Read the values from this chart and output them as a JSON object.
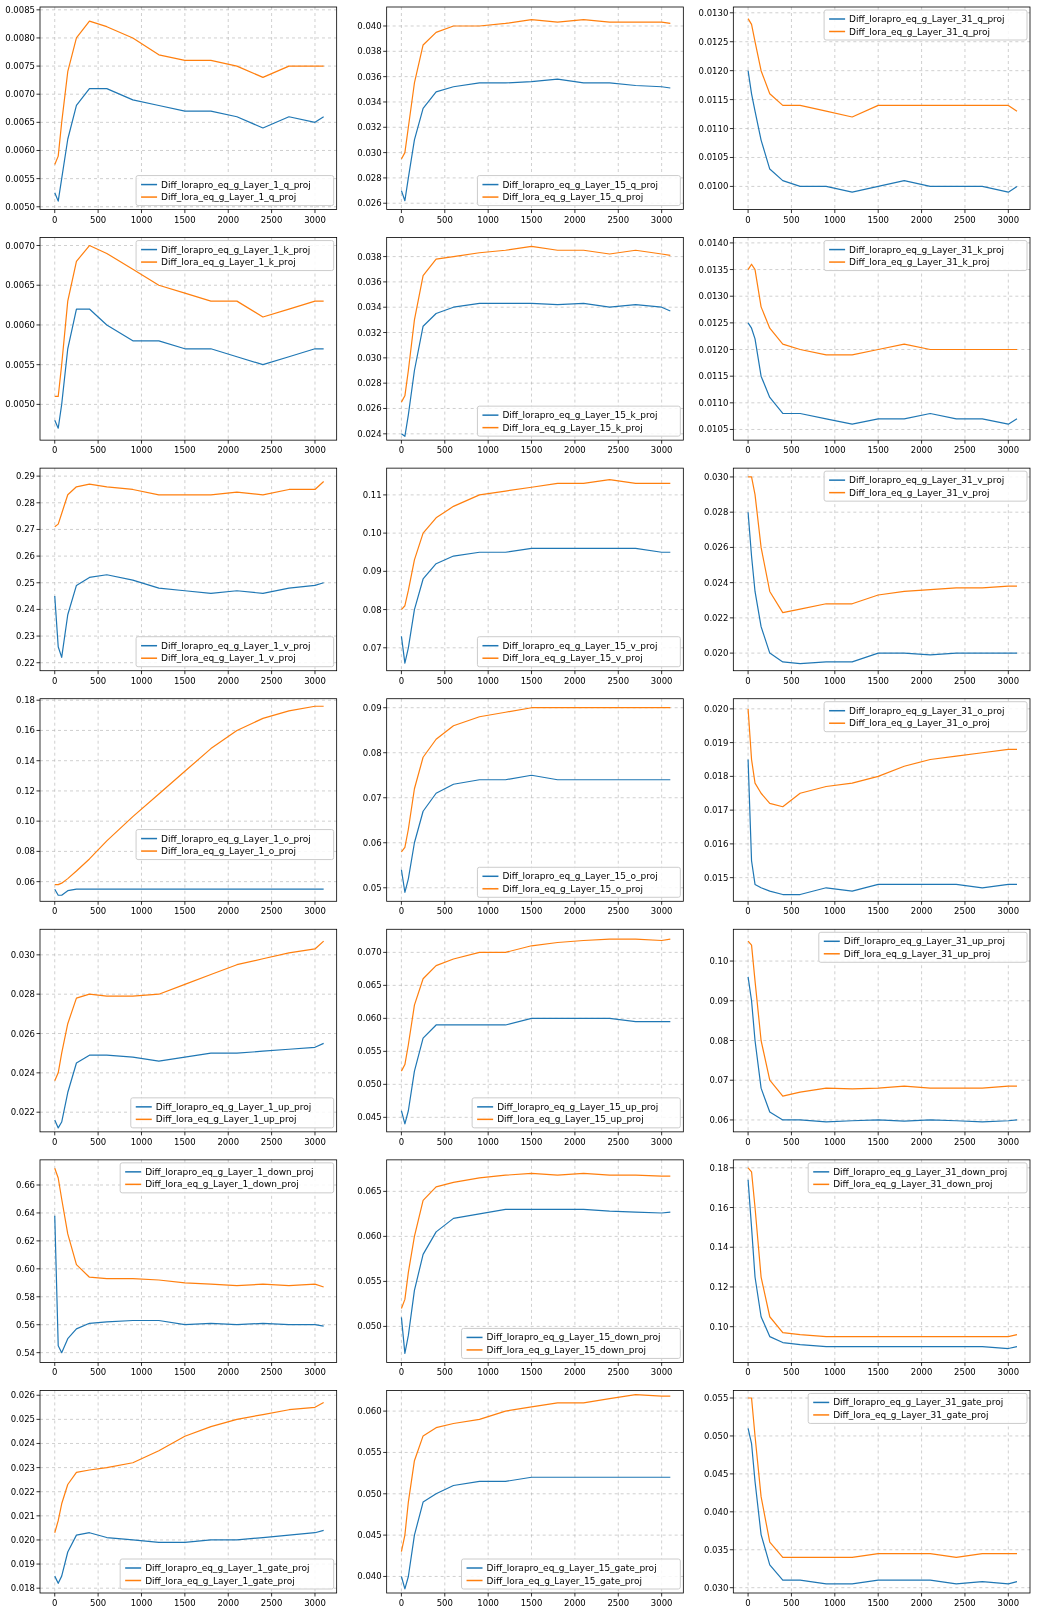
{
  "chart_data": [
    {
      "type": "line",
      "x": [
        0,
        40,
        80,
        150,
        250,
        400,
        600,
        900,
        1200,
        1500,
        1800,
        2100,
        2400,
        2700,
        3000,
        3100
      ],
      "xlim": [
        -170,
        3250
      ],
      "xticks": [
        0,
        500,
        1000,
        1500,
        2000,
        2500,
        3000
      ],
      "ylim": [
        0.00495,
        0.00855
      ],
      "yticks": [
        {
          "value": 0.005,
          "label": "0.0050"
        },
        0.0055,
        {
          "value": 0.006,
          "label": "0.0060"
        },
        0.0065,
        {
          "value": 0.007,
          "label": "0.0070"
        },
        0.0075,
        {
          "value": 0.008,
          "label": "0.0080"
        },
        0.0085
      ],
      "grid": true,
      "legend": "bottom right",
      "series": [
        {
          "name": "Diff_lorapro_eq_g_Layer_1_q_proj",
          "color": "#1f77b4",
          "values": [
            0.00525,
            0.0051,
            0.0055,
            0.0062,
            0.0068,
            0.0071,
            0.0071,
            0.0069,
            0.0068,
            0.0067,
            0.0067,
            0.0066,
            0.0064,
            0.0066,
            0.0065,
            0.0066
          ]
        },
        {
          "name": "Diff_lora_eq_g_Layer_1_q_proj",
          "color": "#ff7f0e",
          "values": [
            0.00575,
            0.0059,
            0.0065,
            0.0074,
            0.008,
            0.0083,
            0.0082,
            0.008,
            0.0077,
            0.0076,
            0.0076,
            0.0075,
            0.0073,
            0.0075,
            0.0075,
            0.0075
          ]
        }
      ]
    },
    {
      "type": "line",
      "x": [
        0,
        40,
        80,
        150,
        250,
        400,
        600,
        900,
        1200,
        1500,
        1800,
        2100,
        2400,
        2700,
        3000,
        3100
      ],
      "xlim": [
        -170,
        3250
      ],
      "xticks": [
        0,
        500,
        1000,
        1500,
        2000,
        2500,
        3000
      ],
      "ylim": [
        0.0255,
        0.0415
      ],
      "yticks": [
        0.026,
        0.028,
        {
          "value": 0.03,
          "label": "0.030"
        },
        0.032,
        0.034,
        0.036,
        0.038,
        {
          "value": 0.04,
          "label": "0.040"
        }
      ],
      "grid": true,
      "legend": "bottom right",
      "series": [
        {
          "name": "Diff_lorapro_eq_g_Layer_15_q_proj",
          "color": "#1f77b4",
          "values": [
            0.027,
            0.0262,
            0.028,
            0.031,
            0.0335,
            0.0348,
            0.0352,
            0.0355,
            0.0355,
            0.0356,
            0.0358,
            0.0355,
            0.0355,
            0.0353,
            0.0352,
            0.0351
          ]
        },
        {
          "name": "Diff_lora_eq_g_Layer_15_q_proj",
          "color": "#ff7f0e",
          "values": [
            0.0295,
            0.03,
            0.032,
            0.0355,
            0.0385,
            0.0395,
            0.04,
            0.04,
            0.0402,
            0.0405,
            0.0403,
            0.0405,
            0.0403,
            0.0403,
            0.0403,
            0.0402
          ]
        }
      ]
    },
    {
      "type": "line",
      "x": [
        0,
        40,
        80,
        150,
        250,
        400,
        600,
        900,
        1200,
        1500,
        1800,
        2100,
        2400,
        2700,
        3000,
        3100
      ],
      "xlim": [
        -170,
        3250
      ],
      "xticks": [
        0,
        500,
        1000,
        1500,
        2000,
        2500,
        3000
      ],
      "ylim": [
        0.0096,
        0.0131
      ],
      "yticks": [
        {
          "value": 0.01,
          "label": "0.0100"
        },
        0.0105,
        {
          "value": 0.011,
          "label": "0.0110"
        },
        0.0115,
        {
          "value": 0.012,
          "label": "0.0120"
        },
        0.0125,
        {
          "value": 0.013,
          "label": "0.0130"
        }
      ],
      "grid": true,
      "legend": "top right",
      "series": [
        {
          "name": "Diff_lorapro_eq_g_Layer_31_q_proj",
          "color": "#1f77b4",
          "values": [
            0.012,
            0.0116,
            0.0113,
            0.0108,
            0.0103,
            0.0101,
            0.01,
            0.01,
            0.0099,
            0.01,
            0.0101,
            0.01,
            0.01,
            0.01,
            0.0099,
            0.01
          ]
        },
        {
          "name": "Diff_lora_eq_g_Layer_31_q_proj",
          "color": "#ff7f0e",
          "values": [
            0.0129,
            0.0128,
            0.0125,
            0.012,
            0.0116,
            0.0114,
            0.0114,
            0.0113,
            0.0112,
            0.0114,
            0.0114,
            0.0114,
            0.0114,
            0.0114,
            0.0114,
            0.0113
          ]
        }
      ]
    },
    {
      "type": "line",
      "x": [
        0,
        40,
        80,
        150,
        250,
        400,
        600,
        900,
        1200,
        1500,
        1800,
        2100,
        2400,
        2700,
        3000,
        3100
      ],
      "xlim": [
        -170,
        3250
      ],
      "xticks": [
        0,
        500,
        1000,
        1500,
        2000,
        2500,
        3000
      ],
      "ylim": [
        0.00455,
        0.0071
      ],
      "yticks": [
        {
          "value": 0.005,
          "label": "0.0050"
        },
        0.0055,
        {
          "value": 0.006,
          "label": "0.0060"
        },
        0.0065,
        {
          "value": 0.007,
          "label": "0.0070"
        }
      ],
      "grid": true,
      "legend": "top right",
      "series": [
        {
          "name": "Diff_lorapro_eq_g_Layer_1_k_proj",
          "color": "#1f77b4",
          "values": [
            0.0048,
            0.0047,
            0.005,
            0.0057,
            0.0062,
            0.0062,
            0.006,
            0.0058,
            0.0058,
            0.0057,
            0.0057,
            0.0056,
            0.0055,
            0.0056,
            0.0057,
            0.0057
          ]
        },
        {
          "name": "Diff_lora_eq_g_Layer_1_k_proj",
          "color": "#ff7f0e",
          "values": [
            0.0051,
            0.0051,
            0.0055,
            0.0063,
            0.0068,
            0.007,
            0.0069,
            0.0067,
            0.0065,
            0.0064,
            0.0063,
            0.0063,
            0.0061,
            0.0062,
            0.0063,
            0.0063
          ]
        }
      ]
    },
    {
      "type": "line",
      "x": [
        0,
        40,
        80,
        150,
        250,
        400,
        600,
        900,
        1200,
        1500,
        1800,
        2100,
        2400,
        2700,
        3000,
        3100
      ],
      "xlim": [
        -170,
        3250
      ],
      "xticks": [
        0,
        500,
        1000,
        1500,
        2000,
        2500,
        3000
      ],
      "ylim": [
        0.0235,
        0.0395
      ],
      "yticks": [
        0.024,
        0.026,
        0.028,
        {
          "value": 0.03,
          "label": "0.030"
        },
        0.032,
        0.034,
        0.036,
        0.038
      ],
      "grid": true,
      "legend": "bottom right",
      "series": [
        {
          "name": "Diff_lorapro_eq_g_Layer_15_k_proj",
          "color": "#1f77b4",
          "values": [
            0.024,
            0.0238,
            0.0255,
            0.029,
            0.0325,
            0.0335,
            0.034,
            0.0343,
            0.0343,
            0.0343,
            0.0342,
            0.0343,
            0.034,
            0.0342,
            0.034,
            0.0337
          ]
        },
        {
          "name": "Diff_lora_eq_g_Layer_15_k_proj",
          "color": "#ff7f0e",
          "values": [
            0.0265,
            0.027,
            0.029,
            0.033,
            0.0365,
            0.0378,
            0.038,
            0.0383,
            0.0385,
            0.0388,
            0.0385,
            0.0385,
            0.0382,
            0.0385,
            0.0382,
            0.0381
          ]
        }
      ]
    },
    {
      "type": "line",
      "x": [
        0,
        40,
        80,
        150,
        250,
        400,
        600,
        900,
        1200,
        1500,
        1800,
        2100,
        2400,
        2700,
        3000,
        3100
      ],
      "xlim": [
        -170,
        3250
      ],
      "xticks": [
        0,
        500,
        1000,
        1500,
        2000,
        2500,
        3000
      ],
      "ylim": [
        0.0103,
        0.0141
      ],
      "yticks": [
        0.0105,
        {
          "value": 0.011,
          "label": "0.0110"
        },
        0.0115,
        {
          "value": 0.012,
          "label": "0.0120"
        },
        0.0125,
        {
          "value": 0.013,
          "label": "0.0130"
        },
        0.0135,
        {
          "value": 0.014,
          "label": "0.0140"
        }
      ],
      "grid": true,
      "legend": "top right",
      "series": [
        {
          "name": "Diff_lorapro_eq_g_Layer_31_k_proj",
          "color": "#1f77b4",
          "values": [
            0.0125,
            0.0124,
            0.0122,
            0.0115,
            0.0111,
            0.0108,
            0.0108,
            0.0107,
            0.0106,
            0.0107,
            0.0107,
            0.0108,
            0.0107,
            0.0107,
            0.0106,
            0.0107
          ]
        },
        {
          "name": "Diff_lora_eq_g_Layer_31_k_proj",
          "color": "#ff7f0e",
          "values": [
            0.0135,
            0.0136,
            0.0135,
            0.0128,
            0.0124,
            0.0121,
            0.012,
            0.0119,
            0.0119,
            0.012,
            0.0121,
            0.012,
            0.012,
            0.012,
            0.012,
            0.012
          ]
        }
      ]
    },
    {
      "type": "line",
      "x": [
        0,
        40,
        80,
        150,
        250,
        400,
        600,
        900,
        1200,
        1500,
        1800,
        2100,
        2400,
        2700,
        3000,
        3100
      ],
      "xlim": [
        -170,
        3250
      ],
      "xticks": [
        0,
        500,
        1000,
        1500,
        2000,
        2500,
        3000
      ],
      "ylim": [
        0.217,
        0.293
      ],
      "yticks": [
        0.22,
        0.23,
        0.24,
        0.25,
        0.26,
        0.27,
        0.28,
        0.29
      ],
      "grid": true,
      "legend": "bottom right",
      "series": [
        {
          "name": "Diff_lorapro_eq_g_Layer_1_v_proj",
          "color": "#1f77b4",
          "values": [
            0.245,
            0.226,
            0.222,
            0.238,
            0.249,
            0.252,
            0.253,
            0.251,
            0.248,
            0.247,
            0.246,
            0.247,
            0.246,
            0.248,
            0.249,
            0.25
          ]
        },
        {
          "name": "Diff_lora_eq_g_Layer_1_v_proj",
          "color": "#ff7f0e",
          "values": [
            0.271,
            0.272,
            0.276,
            0.283,
            0.286,
            0.287,
            0.286,
            0.285,
            0.283,
            0.283,
            0.283,
            0.284,
            0.283,
            0.285,
            0.285,
            0.288
          ]
        }
      ]
    },
    {
      "type": "line",
      "x": [
        0,
        40,
        80,
        150,
        250,
        400,
        600,
        900,
        1200,
        1500,
        1800,
        2100,
        2400,
        2700,
        3000,
        3100
      ],
      "xlim": [
        -170,
        3250
      ],
      "xticks": [
        0,
        500,
        1000,
        1500,
        2000,
        2500,
        3000
      ],
      "ylim": [
        0.064,
        0.117
      ],
      "yticks": [
        0.07,
        0.08,
        0.09,
        {
          "value": 0.1,
          "label": "0.10"
        },
        0.11
      ],
      "grid": true,
      "legend": "bottom right",
      "series": [
        {
          "name": "Diff_lorapro_eq_g_Layer_15_v_proj",
          "color": "#1f77b4",
          "values": [
            0.073,
            0.066,
            0.07,
            0.08,
            0.088,
            0.092,
            0.094,
            0.095,
            0.095,
            0.096,
            0.096,
            0.096,
            0.096,
            0.096,
            0.095,
            0.095
          ]
        },
        {
          "name": "Diff_lora_eq_g_Layer_15_v_proj",
          "color": "#ff7f0e",
          "values": [
            0.08,
            0.081,
            0.085,
            0.093,
            0.1,
            0.104,
            0.107,
            0.11,
            0.111,
            0.112,
            0.113,
            0.113,
            0.114,
            0.113,
            0.113,
            0.113
          ]
        }
      ]
    },
    {
      "type": "line",
      "x": [
        0,
        40,
        80,
        150,
        250,
        400,
        600,
        900,
        1200,
        1500,
        1800,
        2100,
        2400,
        2700,
        3000,
        3100
      ],
      "xlim": [
        -170,
        3250
      ],
      "xticks": [
        0,
        500,
        1000,
        1500,
        2000,
        2500,
        3000
      ],
      "ylim": [
        0.019,
        0.0305
      ],
      "yticks": [
        {
          "value": 0.02,
          "label": "0.020"
        },
        0.022,
        0.024,
        0.026,
        0.028,
        {
          "value": 0.03,
          "label": "0.030"
        }
      ],
      "grid": true,
      "legend": "top right",
      "series": [
        {
          "name": "Diff_lorapro_eq_g_Layer_31_v_proj",
          "color": "#1f77b4",
          "values": [
            0.028,
            0.0255,
            0.0235,
            0.0215,
            0.02,
            0.0195,
            0.0194,
            0.0195,
            0.0195,
            0.02,
            0.02,
            0.0199,
            0.02,
            0.02,
            0.02,
            0.02
          ]
        },
        {
          "name": "Diff_lora_eq_g_Layer_31_v_proj",
          "color": "#ff7f0e",
          "values": [
            0.03,
            0.03,
            0.029,
            0.026,
            0.0235,
            0.0223,
            0.0225,
            0.0228,
            0.0228,
            0.0233,
            0.0235,
            0.0236,
            0.0237,
            0.0237,
            0.0238,
            0.0238
          ]
        }
      ]
    },
    {
      "type": "line",
      "x": [
        0,
        40,
        80,
        150,
        250,
        400,
        600,
        900,
        1200,
        1500,
        1800,
        2100,
        2400,
        2700,
        3000,
        3100
      ],
      "xlim": [
        -170,
        3250
      ],
      "xticks": [
        0,
        500,
        1000,
        1500,
        2000,
        2500,
        3000
      ],
      "ylim": [
        0.047,
        0.181
      ],
      "yticks": [
        0.06,
        0.08,
        {
          "value": 0.1,
          "label": "0.10"
        },
        0.12,
        0.14,
        0.16,
        0.18
      ],
      "grid": true,
      "legend": "right",
      "series": [
        {
          "name": "Diff_lorapro_eq_g_Layer_1_o_proj",
          "color": "#1f77b4",
          "values": [
            0.055,
            0.051,
            0.051,
            0.054,
            0.055,
            0.055,
            0.055,
            0.055,
            0.055,
            0.055,
            0.055,
            0.055,
            0.055,
            0.055,
            0.055,
            0.055
          ]
        },
        {
          "name": "Diff_lora_eq_g_Layer_1_o_proj",
          "color": "#ff7f0e",
          "values": [
            0.058,
            0.058,
            0.059,
            0.062,
            0.067,
            0.075,
            0.087,
            0.103,
            0.118,
            0.133,
            0.148,
            0.16,
            0.168,
            0.173,
            0.176,
            0.176
          ]
        }
      ]
    },
    {
      "type": "line",
      "x": [
        0,
        40,
        80,
        150,
        250,
        400,
        600,
        900,
        1200,
        1500,
        1800,
        2100,
        2400,
        2700,
        3000,
        3100
      ],
      "xlim": [
        -170,
        3250
      ],
      "xticks": [
        0,
        500,
        1000,
        1500,
        2000,
        2500,
        3000
      ],
      "ylim": [
        0.047,
        0.092
      ],
      "yticks": [
        0.05,
        0.06,
        0.07,
        0.08,
        0.09
      ],
      "grid": true,
      "legend": "bottom right",
      "series": [
        {
          "name": "Diff_lorapro_eq_g_Layer_15_o_proj",
          "color": "#1f77b4",
          "values": [
            0.054,
            0.049,
            0.052,
            0.06,
            0.067,
            0.071,
            0.073,
            0.074,
            0.074,
            0.075,
            0.074,
            0.074,
            0.074,
            0.074,
            0.074,
            0.074
          ]
        },
        {
          "name": "Diff_lora_eq_g_Layer_15_o_proj",
          "color": "#ff7f0e",
          "values": [
            0.058,
            0.059,
            0.063,
            0.072,
            0.079,
            0.083,
            0.086,
            0.088,
            0.089,
            0.09,
            0.09,
            0.09,
            0.09,
            0.09,
            0.09,
            0.09
          ]
        }
      ]
    },
    {
      "type": "line",
      "x": [
        0,
        40,
        80,
        150,
        250,
        400,
        600,
        900,
        1200,
        1500,
        1800,
        2100,
        2400,
        2700,
        3000,
        3100
      ],
      "xlim": [
        -170,
        3250
      ],
      "xticks": [
        0,
        500,
        1000,
        1500,
        2000,
        2500,
        3000
      ],
      "ylim": [
        0.0143,
        0.0203
      ],
      "yticks": [
        0.015,
        0.016,
        0.017,
        0.018,
        0.019,
        {
          "value": 0.02,
          "label": "0.020"
        }
      ],
      "grid": true,
      "legend": "top right",
      "series": [
        {
          "name": "Diff_lorapro_eq_g_Layer_31_o_proj",
          "color": "#1f77b4",
          "values": [
            0.0185,
            0.0155,
            0.0148,
            0.0147,
            0.0146,
            0.0145,
            0.0145,
            0.0147,
            0.0146,
            0.0148,
            0.0148,
            0.0148,
            0.0148,
            0.0147,
            0.0148,
            0.0148
          ]
        },
        {
          "name": "Diff_lora_eq_g_Layer_31_o_proj",
          "color": "#ff7f0e",
          "values": [
            0.02,
            0.0185,
            0.0178,
            0.0175,
            0.0172,
            0.0171,
            0.0175,
            0.0177,
            0.0178,
            0.018,
            0.0183,
            0.0185,
            0.0186,
            0.0187,
            0.0188,
            0.0188
          ]
        }
      ]
    },
    {
      "type": "line",
      "x": [
        0,
        40,
        80,
        150,
        250,
        400,
        600,
        900,
        1200,
        1500,
        1800,
        2100,
        2400,
        2700,
        3000,
        3100
      ],
      "xlim": [
        -170,
        3250
      ],
      "xticks": [
        0,
        500,
        1000,
        1500,
        2000,
        2500,
        3000
      ],
      "ylim": [
        0.021,
        0.0313
      ],
      "yticks": [
        0.022,
        0.024,
        0.026,
        0.028,
        {
          "value": 0.03,
          "label": "0.030"
        }
      ],
      "grid": true,
      "legend": "bottom right",
      "series": [
        {
          "name": "Diff_lorapro_eq_g_Layer_1_up_proj",
          "color": "#1f77b4",
          "values": [
            0.0216,
            0.0212,
            0.0215,
            0.023,
            0.0245,
            0.0249,
            0.0249,
            0.0248,
            0.0246,
            0.0248,
            0.025,
            0.025,
            0.0251,
            0.0252,
            0.0253,
            0.0255
          ]
        },
        {
          "name": "Diff_lora_eq_g_Layer_1_up_proj",
          "color": "#ff7f0e",
          "values": [
            0.0236,
            0.024,
            0.025,
            0.0265,
            0.0278,
            0.028,
            0.0279,
            0.0279,
            0.028,
            0.0285,
            0.029,
            0.0295,
            0.0298,
            0.0301,
            0.0303,
            0.0307
          ]
        }
      ]
    },
    {
      "type": "line",
      "x": [
        0,
        40,
        80,
        150,
        250,
        400,
        600,
        900,
        1200,
        1500,
        1800,
        2100,
        2400,
        2700,
        3000,
        3100
      ],
      "xlim": [
        -170,
        3250
      ],
      "xticks": [
        0,
        500,
        1000,
        1500,
        2000,
        2500,
        3000
      ],
      "ylim": [
        0.0428,
        0.0735
      ],
      "yticks": [
        0.045,
        {
          "value": 0.05,
          "label": "0.050"
        },
        0.055,
        {
          "value": 0.06,
          "label": "0.060"
        },
        0.065,
        {
          "value": 0.07,
          "label": "0.070"
        }
      ],
      "grid": true,
      "legend": "bottom right",
      "series": [
        {
          "name": "Diff_lorapro_eq_g_Layer_15_up_proj",
          "color": "#1f77b4",
          "values": [
            0.046,
            0.044,
            0.046,
            0.052,
            0.057,
            0.059,
            0.059,
            0.059,
            0.059,
            0.06,
            0.06,
            0.06,
            0.06,
            0.0595,
            0.0595,
            0.0595
          ]
        },
        {
          "name": "Diff_lora_eq_g_Layer_15_up_proj",
          "color": "#ff7f0e",
          "values": [
            0.052,
            0.053,
            0.056,
            0.062,
            0.066,
            0.068,
            0.069,
            0.07,
            0.07,
            0.071,
            0.0715,
            0.0718,
            0.072,
            0.072,
            0.0718,
            0.072
          ]
        }
      ]
    },
    {
      "type": "line",
      "x": [
        0,
        40,
        80,
        150,
        250,
        400,
        600,
        900,
        1200,
        1500,
        1800,
        2100,
        2400,
        2700,
        3000,
        3100
      ],
      "xlim": [
        -170,
        3250
      ],
      "xticks": [
        0,
        500,
        1000,
        1500,
        2000,
        2500,
        3000
      ],
      "ylim": [
        0.057,
        0.108
      ],
      "yticks": [
        0.06,
        0.07,
        0.08,
        0.09,
        {
          "value": 0.1,
          "label": "0.10"
        }
      ],
      "grid": true,
      "legend": "top right",
      "series": [
        {
          "name": "Diff_lorapro_eq_g_Layer_31_up_proj",
          "color": "#1f77b4",
          "values": [
            0.096,
            0.09,
            0.08,
            0.068,
            0.062,
            0.06,
            0.06,
            0.0595,
            0.0598,
            0.06,
            0.0597,
            0.06,
            0.0598,
            0.0595,
            0.0598,
            0.06
          ]
        },
        {
          "name": "Diff_lora_eq_g_Layer_31_up_proj",
          "color": "#ff7f0e",
          "values": [
            0.105,
            0.104,
            0.095,
            0.08,
            0.07,
            0.066,
            0.067,
            0.068,
            0.0678,
            0.068,
            0.0685,
            0.068,
            0.068,
            0.068,
            0.0685,
            0.0685
          ]
        }
      ]
    },
    {
      "type": "line",
      "x": [
        0,
        40,
        80,
        150,
        250,
        400,
        600,
        900,
        1200,
        1500,
        1800,
        2100,
        2400,
        2700,
        3000,
        3100
      ],
      "xlim": [
        -170,
        3250
      ],
      "xticks": [
        0,
        500,
        1000,
        1500,
        2000,
        2500,
        3000
      ],
      "ylim": [
        0.533,
        0.678
      ],
      "yticks": [
        0.54,
        0.56,
        0.58,
        {
          "value": 0.6,
          "label": "0.60"
        },
        0.62,
        0.64,
        0.66
      ],
      "grid": true,
      "legend": "top right",
      "series": [
        {
          "name": "Diff_lorapro_eq_g_Layer_1_down_proj",
          "color": "#1f77b4",
          "values": [
            0.638,
            0.545,
            0.54,
            0.55,
            0.557,
            0.561,
            0.562,
            0.563,
            0.563,
            0.56,
            0.561,
            0.56,
            0.561,
            0.56,
            0.56,
            0.559
          ]
        },
        {
          "name": "Diff_lora_eq_g_Layer_1_down_proj",
          "color": "#ff7f0e",
          "values": [
            0.672,
            0.665,
            0.65,
            0.625,
            0.603,
            0.594,
            0.593,
            0.593,
            0.592,
            0.59,
            0.589,
            0.588,
            0.589,
            0.588,
            0.589,
            0.587
          ]
        }
      ]
    },
    {
      "type": "line",
      "x": [
        0,
        40,
        80,
        150,
        250,
        400,
        600,
        900,
        1200,
        1500,
        1800,
        2100,
        2400,
        2700,
        3000,
        3100
      ],
      "xlim": [
        -170,
        3250
      ],
      "xticks": [
        0,
        500,
        1000,
        1500,
        2000,
        2500,
        3000
      ],
      "ylim": [
        0.046,
        0.0685
      ],
      "yticks": [
        {
          "value": 0.05,
          "label": "0.050"
        },
        0.055,
        {
          "value": 0.06,
          "label": "0.060"
        },
        0.065
      ],
      "grid": true,
      "legend": "bottom right",
      "series": [
        {
          "name": "Diff_lorapro_eq_g_Layer_15_down_proj",
          "color": "#1f77b4",
          "values": [
            0.051,
            0.047,
            0.049,
            0.054,
            0.058,
            0.0605,
            0.062,
            0.0625,
            0.063,
            0.063,
            0.063,
            0.063,
            0.0628,
            0.0627,
            0.0626,
            0.0627
          ]
        },
        {
          "name": "Diff_lora_eq_g_Layer_15_down_proj",
          "color": "#ff7f0e",
          "values": [
            0.052,
            0.053,
            0.056,
            0.06,
            0.064,
            0.0655,
            0.066,
            0.0665,
            0.0668,
            0.067,
            0.0668,
            0.067,
            0.0668,
            0.0668,
            0.0667,
            0.0667
          ]
        }
      ]
    },
    {
      "type": "line",
      "x": [
        0,
        40,
        80,
        150,
        250,
        400,
        600,
        900,
        1200,
        1500,
        1800,
        2100,
        2400,
        2700,
        3000,
        3100
      ],
      "xlim": [
        -170,
        3250
      ],
      "xticks": [
        0,
        500,
        1000,
        1500,
        2000,
        2500,
        3000
      ],
      "ylim": [
        0.082,
        0.184
      ],
      "yticks": [
        {
          "value": 0.1,
          "label": "0.10"
        },
        0.12,
        0.14,
        0.16,
        0.18
      ],
      "grid": true,
      "legend": "top right",
      "series": [
        {
          "name": "Diff_lorapro_eq_g_Layer_31_down_proj",
          "color": "#1f77b4",
          "values": [
            0.174,
            0.15,
            0.125,
            0.105,
            0.095,
            0.092,
            0.091,
            0.09,
            0.09,
            0.09,
            0.09,
            0.09,
            0.09,
            0.09,
            0.089,
            0.09
          ]
        },
        {
          "name": "Diff_lora_eq_g_Layer_31_down_proj",
          "color": "#ff7f0e",
          "values": [
            0.18,
            0.178,
            0.16,
            0.125,
            0.105,
            0.097,
            0.096,
            0.095,
            0.095,
            0.095,
            0.095,
            0.095,
            0.095,
            0.095,
            0.095,
            0.096
          ]
        }
      ]
    },
    {
      "type": "line",
      "x": [
        0,
        40,
        80,
        150,
        250,
        400,
        600,
        900,
        1200,
        1500,
        1800,
        2100,
        2400,
        2700,
        3000,
        3100
      ],
      "xlim": [
        -170,
        3250
      ],
      "xticks": [
        0,
        500,
        1000,
        1500,
        2000,
        2500,
        3000
      ],
      "ylim": [
        0.0178,
        0.0262
      ],
      "yticks": [
        0.018,
        0.019,
        {
          "value": 0.02,
          "label": "0.020"
        },
        0.021,
        0.022,
        0.023,
        0.024,
        0.025,
        0.026
      ],
      "grid": true,
      "legend": "bottom right",
      "series": [
        {
          "name": "Diff_lorapro_eq_g_Layer_1_gate_proj",
          "color": "#1f77b4",
          "values": [
            0.0185,
            0.0182,
            0.0185,
            0.0195,
            0.0202,
            0.0203,
            0.0201,
            0.02,
            0.0199,
            0.0199,
            0.02,
            0.02,
            0.0201,
            0.0202,
            0.0203,
            0.0204
          ]
        },
        {
          "name": "Diff_lora_eq_g_Layer_1_gate_proj",
          "color": "#ff7f0e",
          "values": [
            0.0203,
            0.0208,
            0.0215,
            0.0223,
            0.0228,
            0.0229,
            0.023,
            0.0232,
            0.0237,
            0.0243,
            0.0247,
            0.025,
            0.0252,
            0.0254,
            0.0255,
            0.0257
          ]
        }
      ]
    },
    {
      "type": "line",
      "x": [
        0,
        40,
        80,
        150,
        250,
        400,
        600,
        900,
        1200,
        1500,
        1800,
        2100,
        2400,
        2700,
        3000,
        3100
      ],
      "xlim": [
        -170,
        3250
      ],
      "xticks": [
        0,
        500,
        1000,
        1500,
        2000,
        2500,
        3000
      ],
      "ylim": [
        0.038,
        0.0625
      ],
      "yticks": [
        {
          "value": 0.04,
          "label": "0.040"
        },
        0.045,
        {
          "value": 0.05,
          "label": "0.050"
        },
        0.055,
        {
          "value": 0.06,
          "label": "0.060"
        }
      ],
      "grid": true,
      "legend": "bottom right",
      "series": [
        {
          "name": "Diff_lorapro_eq_g_Layer_15_gate_proj",
          "color": "#1f77b4",
          "values": [
            0.04,
            0.0385,
            0.04,
            0.045,
            0.049,
            0.05,
            0.051,
            0.0515,
            0.0515,
            0.052,
            0.052,
            0.052,
            0.052,
            0.052,
            0.052,
            0.052
          ]
        },
        {
          "name": "Diff_lora_eq_g_Layer_15_gate_proj",
          "color": "#ff7f0e",
          "values": [
            0.043,
            0.045,
            0.049,
            0.054,
            0.057,
            0.058,
            0.0585,
            0.059,
            0.06,
            0.0605,
            0.061,
            0.061,
            0.0615,
            0.062,
            0.0618,
            0.0618
          ]
        }
      ]
    },
    {
      "type": "line",
      "x": [
        0,
        40,
        80,
        150,
        250,
        400,
        600,
        900,
        1200,
        1500,
        1800,
        2100,
        2400,
        2700,
        3000,
        3100
      ],
      "xlim": [
        -170,
        3250
      ],
      "xticks": [
        0,
        500,
        1000,
        1500,
        2000,
        2500,
        3000
      ],
      "ylim": [
        0.0293,
        0.056
      ],
      "yticks": [
        {
          "value": 0.03,
          "label": "0.030"
        },
        0.035,
        {
          "value": 0.04,
          "label": "0.040"
        },
        0.045,
        {
          "value": 0.05,
          "label": "0.050"
        },
        0.055
      ],
      "grid": true,
      "legend": "top right",
      "series": [
        {
          "name": "Diff_lorapro_eq_g_Layer_31_gate_proj",
          "color": "#1f77b4",
          "values": [
            0.051,
            0.049,
            0.044,
            0.037,
            0.033,
            0.031,
            0.031,
            0.0305,
            0.0305,
            0.031,
            0.031,
            0.031,
            0.0305,
            0.0308,
            0.0305,
            0.0308
          ]
        },
        {
          "name": "Diff_lora_eq_g_Layer_31_gate_proj",
          "color": "#ff7f0e",
          "values": [
            0.055,
            0.055,
            0.05,
            0.042,
            0.036,
            0.034,
            0.034,
            0.034,
            0.034,
            0.0345,
            0.0345,
            0.0345,
            0.034,
            0.0345,
            0.0345,
            0.0345
          ]
        }
      ]
    }
  ]
}
